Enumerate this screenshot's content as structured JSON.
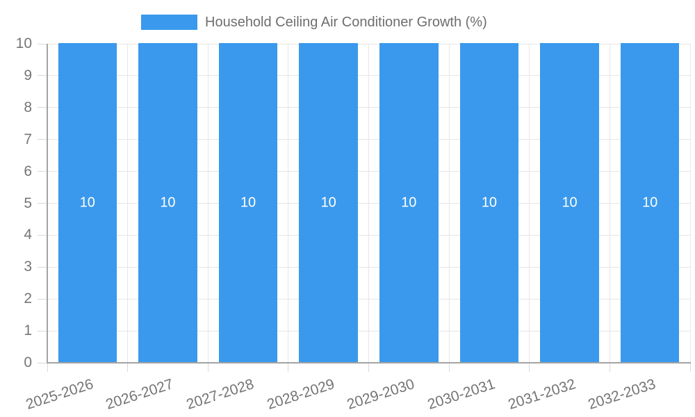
{
  "legend": {
    "label": "Household Ceiling Air Conditioner Growth (%)"
  },
  "chart_data": {
    "type": "bar",
    "title": "Household Ceiling Air Conditioner Growth (%)",
    "categories": [
      "2025-2026",
      "2026-2027",
      "2027-2028",
      "2028-2029",
      "2029-2030",
      "2030-2031",
      "2031-2032",
      "2032-2033"
    ],
    "series": [
      {
        "name": "Household Ceiling Air Conditioner Growth (%)",
        "values": [
          10,
          10,
          10,
          10,
          10,
          10,
          10,
          10
        ]
      }
    ],
    "value_labels": [
      "10",
      "10",
      "10",
      "10",
      "10",
      "10",
      "10",
      "10"
    ],
    "xlabel": "",
    "ylabel": "",
    "ylim": [
      0,
      10
    ],
    "yticks": [
      0,
      1,
      2,
      3,
      4,
      5,
      6,
      7,
      8,
      9,
      10
    ],
    "grid": true,
    "legend_position": "top",
    "x_tick_rotation_deg": -18,
    "colors": {
      "bar": "#3A99EC",
      "value_label": "#FFFFFF",
      "axis_text": "#757575",
      "legend_text": "#6E6E6E",
      "grid_line": "#E6E6E6",
      "tick_line": "#D9D9D9",
      "axis_line": "#A3A3A3"
    }
  }
}
